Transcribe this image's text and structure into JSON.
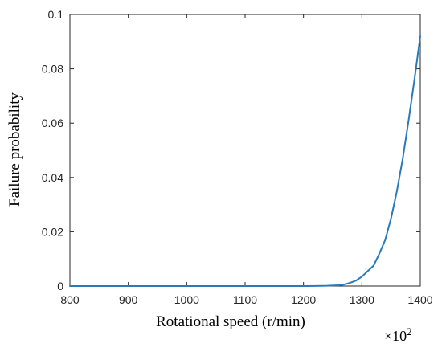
{
  "chart_data": {
    "type": "line",
    "title": "",
    "xlabel": "Rotational speed  (r/min)",
    "ylabel": "Failure probability",
    "x_multiplier": "×10",
    "x_multiplier_exp": "2",
    "xlim": [
      800,
      1400
    ],
    "ylim": [
      0,
      0.1
    ],
    "xticks": [
      "800",
      "900",
      "1000",
      "1100",
      "1200",
      "1300",
      "1400"
    ],
    "yticks": [
      "0",
      "0.02",
      "0.04",
      "0.06",
      "0.08",
      "0.1"
    ],
    "grid": false,
    "line_color": "#2a7ab8",
    "series": [
      {
        "x": [
          800,
          900,
          1000,
          1100,
          1200,
          1220,
          1240,
          1260,
          1270,
          1280,
          1290,
          1300,
          1310,
          1320,
          1330,
          1340,
          1350,
          1360,
          1370,
          1380,
          1390,
          1400
        ],
        "y": [
          0,
          0,
          0,
          0,
          0,
          2e-05,
          0.0001,
          0.0003,
          0.0006,
          0.0012,
          0.002,
          0.0035,
          0.0055,
          0.0075,
          0.012,
          0.017,
          0.025,
          0.035,
          0.047,
          0.061,
          0.076,
          0.092
        ]
      }
    ]
  }
}
